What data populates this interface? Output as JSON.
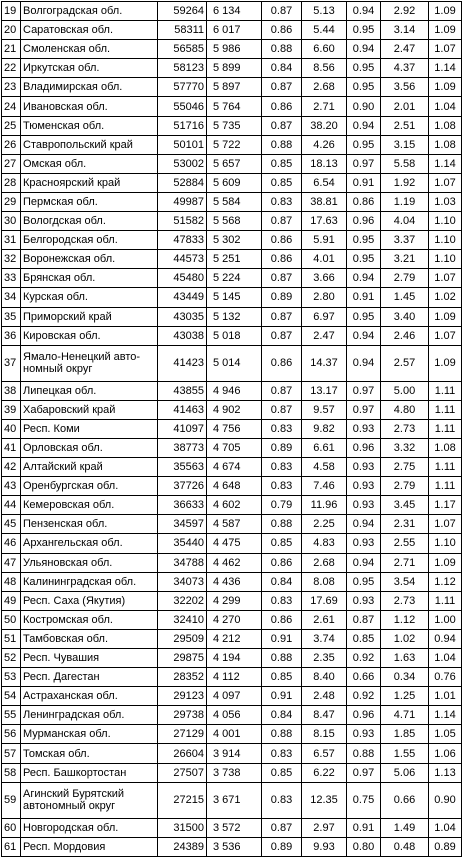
{
  "rows": [
    [
      "19",
      "Волгоградская обл.",
      "59264",
      "6 134",
      "0.87",
      "5.13",
      "0.94",
      "2.92",
      "1.09"
    ],
    [
      "20",
      "Саратовская обл.",
      "58311",
      "6 017",
      "0.86",
      "5.44",
      "0.95",
      "3.14",
      "1.09"
    ],
    [
      "21",
      "Смоленская обл.",
      "56585",
      "5 986",
      "0.88",
      "6.60",
      "0.94",
      "2.47",
      "1.07"
    ],
    [
      "22",
      "Иркутская обл.",
      "58123",
      "5 899",
      "0.84",
      "8.56",
      "0.95",
      "4.37",
      "1.14"
    ],
    [
      "23",
      "Владимирская обл.",
      "57770",
      "5 897",
      "0.87",
      "2.68",
      "0.95",
      "3.56",
      "1.09"
    ],
    [
      "24",
      "Ивановская обл.",
      "55046",
      "5 764",
      "0.86",
      "2.71",
      "0.90",
      "2.01",
      "1.04"
    ],
    [
      "25",
      "Тюменская обл.",
      "51716",
      "5 735",
      "0.87",
      "38.20",
      "0.94",
      "2.51",
      "1.08"
    ],
    [
      "26",
      "Ставропольский край",
      "50101",
      "5 722",
      "0.88",
      "4.26",
      "0.95",
      "3.15",
      "1.08"
    ],
    [
      "27",
      "Омская обл.",
      "53002",
      "5 657",
      "0.85",
      "18.13",
      "0.97",
      "5.58",
      "1.14"
    ],
    [
      "28",
      "Красноярский край",
      "52884",
      "5 609",
      "0.85",
      "6.54",
      "0.91",
      "1.92",
      "1.07"
    ],
    [
      "29",
      "Пермская обл.",
      "49987",
      "5 584",
      "0.83",
      "38.81",
      "0.86",
      "1.19",
      "1.03"
    ],
    [
      "30",
      "Вологдская обл.",
      "51582",
      "5 568",
      "0.87",
      "17.63",
      "0.96",
      "4.04",
      "1.10"
    ],
    [
      "31",
      "Белгородская обл.",
      "47833",
      "5 302",
      "0.86",
      "5.91",
      "0.95",
      "3.37",
      "1.10"
    ],
    [
      "32",
      "Воронежская обл.",
      "44573",
      "5 251",
      "0.86",
      "4.01",
      "0.95",
      "3.21",
      "1.10"
    ],
    [
      "33",
      "Брянская обл.",
      "45480",
      "5 224",
      "0.87",
      "3.66",
      "0.94",
      "2.79",
      "1.07"
    ],
    [
      "34",
      "Курская обл.",
      "43449",
      "5 145",
      "0.89",
      "2.80",
      "0.91",
      "1.45",
      "1.02"
    ],
    [
      "35",
      "Приморский край",
      "43035",
      "5 132",
      "0.87",
      "6.97",
      "0.95",
      "3.40",
      "1.09"
    ],
    [
      "36",
      "Кировская обл.",
      "43038",
      "5 018",
      "0.87",
      "2.47",
      "0.94",
      "2.46",
      "1.07"
    ],
    [
      "37",
      "Ямало-Ненецкий авто-номный округ",
      "41423",
      "5 014",
      "0.86",
      "14.37",
      "0.94",
      "2.57",
      "1.09"
    ],
    [
      "38",
      "Липецкая обл.",
      "43855",
      "4 946",
      "0.87",
      "13.17",
      "0.97",
      "5.00",
      "1.11"
    ],
    [
      "39",
      "Хабаровский край",
      "41463",
      "4 902",
      "0.87",
      "9.57",
      "0.97",
      "4.80",
      "1.11"
    ],
    [
      "40",
      "Респ. Коми",
      "41097",
      "4 756",
      "0.83",
      "9.82",
      "0.93",
      "2.73",
      "1.11"
    ],
    [
      "41",
      "Орловская обл.",
      "38773",
      "4 705",
      "0.89",
      "6.61",
      "0.96",
      "3.32",
      "1.08"
    ],
    [
      "42",
      "Алтайский край",
      "35563",
      "4 674",
      "0.83",
      "4.58",
      "0.93",
      "2.75",
      "1.11"
    ],
    [
      "43",
      "Оренбургская обл.",
      "37726",
      "4 648",
      "0.83",
      "7.46",
      "0.93",
      "2.79",
      "1.11"
    ],
    [
      "44",
      "Кемеровская обл.",
      "36633",
      "4 602",
      "0.79",
      "11.96",
      "0.93",
      "3.45",
      "1.17"
    ],
    [
      "45",
      "Пензенская обл.",
      "34597",
      "4 587",
      "0.88",
      "2.25",
      "0.94",
      "2.31",
      "1.07"
    ],
    [
      "46",
      "Архангельская обл.",
      "35440",
      "4 475",
      "0.85",
      "4.83",
      "0.93",
      "2.55",
      "1.10"
    ],
    [
      "47",
      "Ульяновская обл.",
      "34788",
      "4 462",
      "0.86",
      "2.68",
      "0.94",
      "2.71",
      "1.09"
    ],
    [
      "48",
      "Калининградская обл.",
      "34073",
      "4 436",
      "0.84",
      "8.08",
      "0.95",
      "3.54",
      "1.12"
    ],
    [
      "49",
      "Респ. Саха (Якутия)",
      "32202",
      "4 299",
      "0.83",
      "17.69",
      "0.93",
      "2.73",
      "1.11"
    ],
    [
      "50",
      "Костромская обл.",
      "32410",
      "4 270",
      "0.86",
      "2.61",
      "0.87",
      "1.12",
      "1.00"
    ],
    [
      "51",
      "Тамбовская обл.",
      "29509",
      "4 212",
      "0.91",
      "3.74",
      "0.85",
      "1.02",
      "0.94"
    ],
    [
      "52",
      "Респ. Чувашия",
      "29875",
      "4 194",
      "0.88",
      "2.35",
      "0.92",
      "1.63",
      "1.04"
    ],
    [
      "53",
      "Респ. Дагестан",
      "28352",
      "4 112",
      "0.85",
      "8.40",
      "0.66",
      "0.34",
      "0.76"
    ],
    [
      "54",
      "Астраханская обл.",
      "29123",
      "4 097",
      "0.91",
      "2.48",
      "0.92",
      "1.25",
      "1.01"
    ],
    [
      "55",
      "Ленинградская обл.",
      "29738",
      "4 056",
      "0.84",
      "8.47",
      "0.96",
      "4.71",
      "1.14"
    ],
    [
      "56",
      "Мурманская обл.",
      "27129",
      "4 001",
      "0.88",
      "8.15",
      "0.93",
      "1.85",
      "1.05"
    ],
    [
      "57",
      "Томская обл.",
      "26604",
      "3 914",
      "0.83",
      "6.57",
      "0.88",
      "1.55",
      "1.06"
    ],
    [
      "58",
      "Респ. Башкортостан",
      "27507",
      "3 738",
      "0.85",
      "6.22",
      "0.97",
      "5.06",
      "1.13"
    ],
    [
      "59",
      "Агинский Бурятский автономный округ",
      "27215",
      "3 671",
      "0.83",
      "12.35",
      "0.75",
      "0.66",
      "0.90"
    ],
    [
      "60",
      "Новгородская обл.",
      "31500",
      "3 572",
      "0.87",
      "2.97",
      "0.91",
      "1.49",
      "1.04"
    ],
    [
      "61",
      "Респ. Мордовия",
      "24389",
      "3 536",
      "0.89",
      "9.93",
      "0.80",
      "0.48",
      "0.89"
    ]
  ]
}
